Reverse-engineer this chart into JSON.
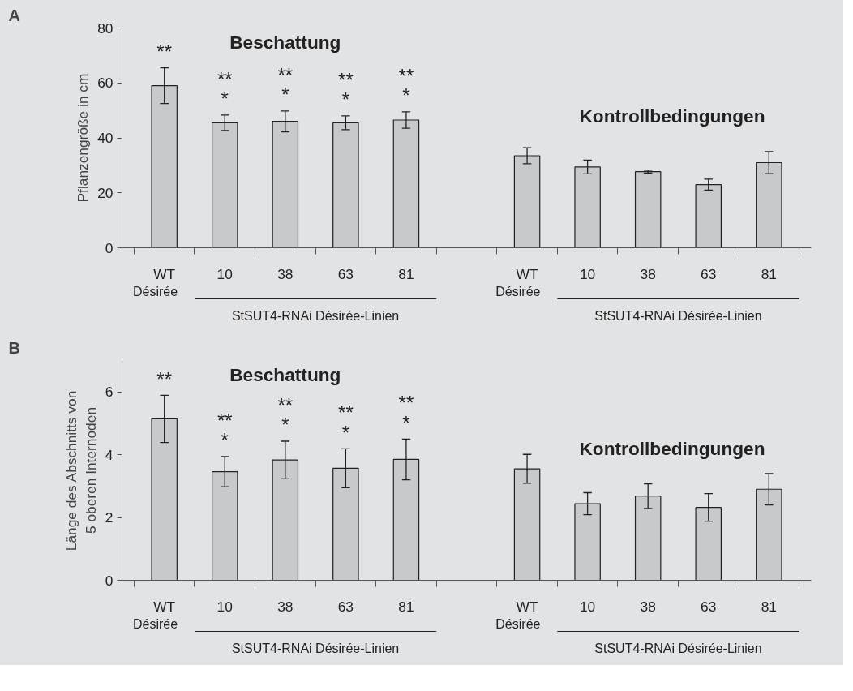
{
  "chart_data": [
    {
      "type": "bar",
      "title": "A",
      "ylabel": "Pflanzengröße in cm",
      "categories": [
        "WT",
        "10",
        "38",
        "63",
        "81",
        null,
        "WT",
        "10",
        "38",
        "63",
        "81"
      ],
      "values": [
        59,
        45.5,
        46,
        45.5,
        46.5,
        null,
        33.5,
        29.4,
        27.7,
        23,
        31
      ],
      "errors": [
        6.5,
        2.8,
        3.8,
        2.5,
        3,
        null,
        2.9,
        2.5,
        0.5,
        2,
        4
      ],
      "color": "#c8c9cb",
      "ylim": [
        0,
        80
      ],
      "yticks": [
        0,
        20,
        40,
        60,
        80
      ],
      "annotations": [
        "Beschattung",
        "Kontrollbedingungen",
        "Désirée",
        "StSUT4-RNAi Désirée-Linien",
        "Désirée",
        "StSUT4-RNAi Désirée-Linien",
        "**",
        "**\n*",
        "**\n*",
        "**\n*",
        "**\n*"
      ]
    },
    {
      "type": "bar",
      "title": "B",
      "ylabel": "Länge des Abschnitts von\n5 oberen Internoden",
      "categories": [
        "WT",
        "10",
        "38",
        "63",
        "81",
        null,
        "WT",
        "10",
        "38",
        "63",
        "81"
      ],
      "values": [
        5.14,
        3.46,
        3.83,
        3.57,
        3.85,
        null,
        3.55,
        2.44,
        2.68,
        2.32,
        2.9
      ],
      "errors": [
        0.75,
        0.48,
        0.6,
        0.62,
        0.65,
        null,
        0.46,
        0.35,
        0.39,
        0.44,
        0.5
      ],
      "color": "#c8c9cb",
      "ylim": [
        0,
        7
      ],
      "yticks": [
        0,
        2,
        4,
        6
      ],
      "annotations": [
        "Beschattung",
        "Kontrollbedingungen",
        "Désirée",
        "StSUT4-RNAi Désirée-Linien",
        "Désirée",
        "StSUT4-RNAi Désirée-Linien",
        "**",
        "**\n*",
        "**\n*",
        "**\n*",
        "**\n*"
      ]
    }
  ]
}
